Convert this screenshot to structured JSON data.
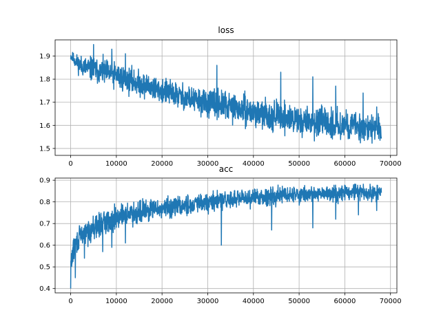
{
  "chart_data": [
    {
      "type": "line",
      "title": "loss",
      "xlabel": "",
      "ylabel": "",
      "xlim": [
        -3400,
        71400
      ],
      "ylim": [
        1.47,
        1.97
      ],
      "grid": true,
      "color": "#1f77b4",
      "x_ticks": [
        0,
        10000,
        20000,
        30000,
        40000,
        50000,
        60000,
        70000
      ],
      "x_tick_labels": [
        "0",
        "10000",
        "20000",
        "30000",
        "40000",
        "50000",
        "60000",
        "70000"
      ],
      "y_ticks": [
        1.5,
        1.6,
        1.7,
        1.8,
        1.9
      ],
      "y_tick_labels": [
        "1.5",
        "1.6",
        "1.7",
        "1.8",
        "1.9"
      ],
      "series": [
        {
          "x_range": [
            0,
            68000
          ],
          "lower_envelope_x": [
            0,
            2000,
            5000,
            10000,
            15000,
            20000,
            25000,
            30000,
            35000,
            40000,
            45000,
            50000,
            55000,
            60000,
            65000,
            68000
          ],
          "lower_envelope_y": [
            1.87,
            1.8,
            1.76,
            1.73,
            1.7,
            1.67,
            1.64,
            1.61,
            1.59,
            1.57,
            1.55,
            1.53,
            1.52,
            1.51,
            1.5,
            1.5
          ],
          "upper_envelope_x": [
            0,
            2000,
            5000,
            10000,
            15000,
            20000,
            25000,
            30000,
            35000,
            40000,
            45000,
            50000,
            55000,
            60000,
            65000,
            68000
          ],
          "upper_envelope_y": [
            1.93,
            1.92,
            1.92,
            1.9,
            1.86,
            1.83,
            1.8,
            1.78,
            1.77,
            1.74,
            1.73,
            1.71,
            1.7,
            1.69,
            1.68,
            1.66
          ],
          "spikes": [
            [
              5000,
              1.95
            ],
            [
              9000,
              1.93
            ],
            [
              12000,
              1.91
            ],
            [
              32000,
              1.86
            ],
            [
              46000,
              1.83
            ],
            [
              53000,
              1.81
            ],
            [
              58000,
              1.77
            ],
            [
              64000,
              1.74
            ],
            [
              67000,
              1.68
            ]
          ]
        }
      ]
    },
    {
      "type": "line",
      "title": "acc",
      "xlabel": "",
      "ylabel": "",
      "xlim": [
        -3400,
        71400
      ],
      "ylim": [
        0.38,
        0.91
      ],
      "grid": true,
      "color": "#1f77b4",
      "x_ticks": [
        0,
        10000,
        20000,
        30000,
        40000,
        50000,
        60000,
        70000
      ],
      "x_tick_labels": [
        "0",
        "10000",
        "20000",
        "30000",
        "40000",
        "50000",
        "60000",
        "70000"
      ],
      "y_ticks": [
        0.4,
        0.5,
        0.6,
        0.7,
        0.8,
        0.9
      ],
      "y_tick_labels": [
        "0.4",
        "0.5",
        "0.6",
        "0.7",
        "0.8",
        "0.9"
      ],
      "series": [
        {
          "x_range": [
            0,
            68000
          ],
          "lower_envelope_x": [
            0,
            500,
            2000,
            5000,
            10000,
            15000,
            20000,
            25000,
            30000,
            35000,
            40000,
            45000,
            50000,
            55000,
            60000,
            65000,
            68000
          ],
          "lower_envelope_y": [
            0.41,
            0.5,
            0.56,
            0.6,
            0.65,
            0.68,
            0.7,
            0.72,
            0.73,
            0.75,
            0.76,
            0.77,
            0.78,
            0.78,
            0.79,
            0.78,
            0.78
          ],
          "upper_envelope_x": [
            0,
            500,
            2000,
            5000,
            10000,
            15000,
            20000,
            25000,
            30000,
            35000,
            40000,
            45000,
            50000,
            55000,
            60000,
            65000,
            68000
          ],
          "upper_envelope_y": [
            0.6,
            0.65,
            0.72,
            0.76,
            0.81,
            0.83,
            0.84,
            0.85,
            0.86,
            0.87,
            0.88,
            0.89,
            0.89,
            0.89,
            0.9,
            0.9,
            0.89
          ],
          "dips": [
            [
              0,
              0.4
            ],
            [
              1000,
              0.45
            ],
            [
              3000,
              0.54
            ],
            [
              7000,
              0.57
            ],
            [
              9000,
              0.59
            ],
            [
              12000,
              0.61
            ],
            [
              33000,
              0.6
            ],
            [
              44000,
              0.67
            ],
            [
              53000,
              0.68
            ],
            [
              58000,
              0.72
            ],
            [
              63000,
              0.74
            ],
            [
              67000,
              0.76
            ]
          ]
        }
      ]
    }
  ]
}
